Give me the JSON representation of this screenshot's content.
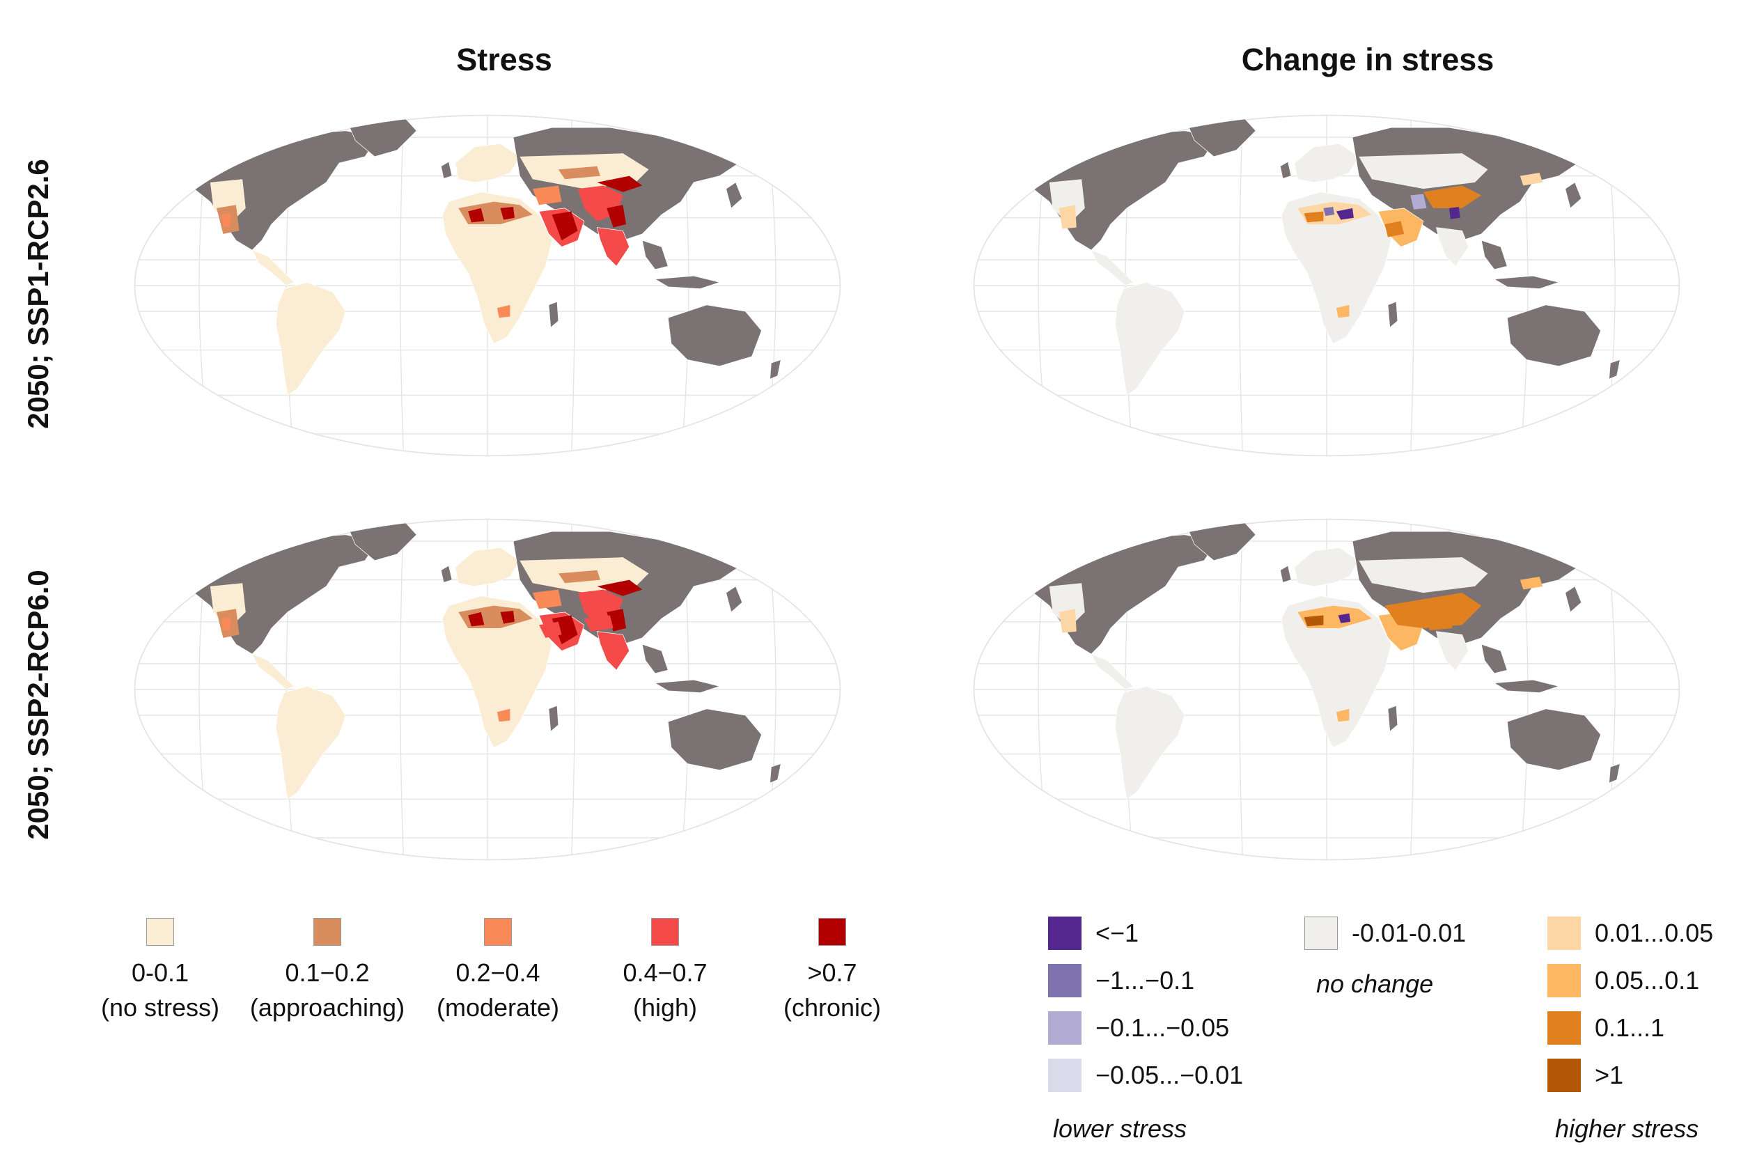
{
  "columns": {
    "left_title": "Stress",
    "right_title": "Change in stress"
  },
  "rows": {
    "top_label": "2050; SSP1-RCP2.6",
    "bottom_label": "2050; SSP2-RCP6.0"
  },
  "colors": {
    "land_no_data": "#7b7373",
    "grid": "#e4e4e4",
    "stress_levels": [
      "#fbecd4",
      "#d98c5e",
      "#f98a57",
      "#f44b4a",
      "#b20000"
    ],
    "change_lower": [
      "#54278f",
      "#7e72ae",
      "#b2abd3",
      "#dadaeb"
    ],
    "change_none": "#f1efec",
    "change_higher": [
      "#fdd6a6",
      "#fdb661",
      "#e0801f",
      "#b35806"
    ]
  },
  "stress_legend": [
    {
      "range": "0-0.1",
      "desc": "(no stress)"
    },
    {
      "range": "0.1−0.2",
      "desc": "(approaching)"
    },
    {
      "range": "0.2−0.4",
      "desc": "(moderate)"
    },
    {
      "range": "0.4−0.7",
      "desc": "(high)"
    },
    {
      "range": ">0.7",
      "desc": "(chronic)"
    }
  ],
  "change_legend": {
    "lower": [
      "<−1",
      "−1...−0.1",
      "−0.1...−0.05",
      "−0.05...−0.01"
    ],
    "none": "-0.01-0.01",
    "none_caption": "no change",
    "higher": [
      "0.01...0.05",
      "0.05...0.1",
      "0.1...1",
      ">1"
    ],
    "lower_caption": "lower stress",
    "higher_caption": "higher stress"
  }
}
